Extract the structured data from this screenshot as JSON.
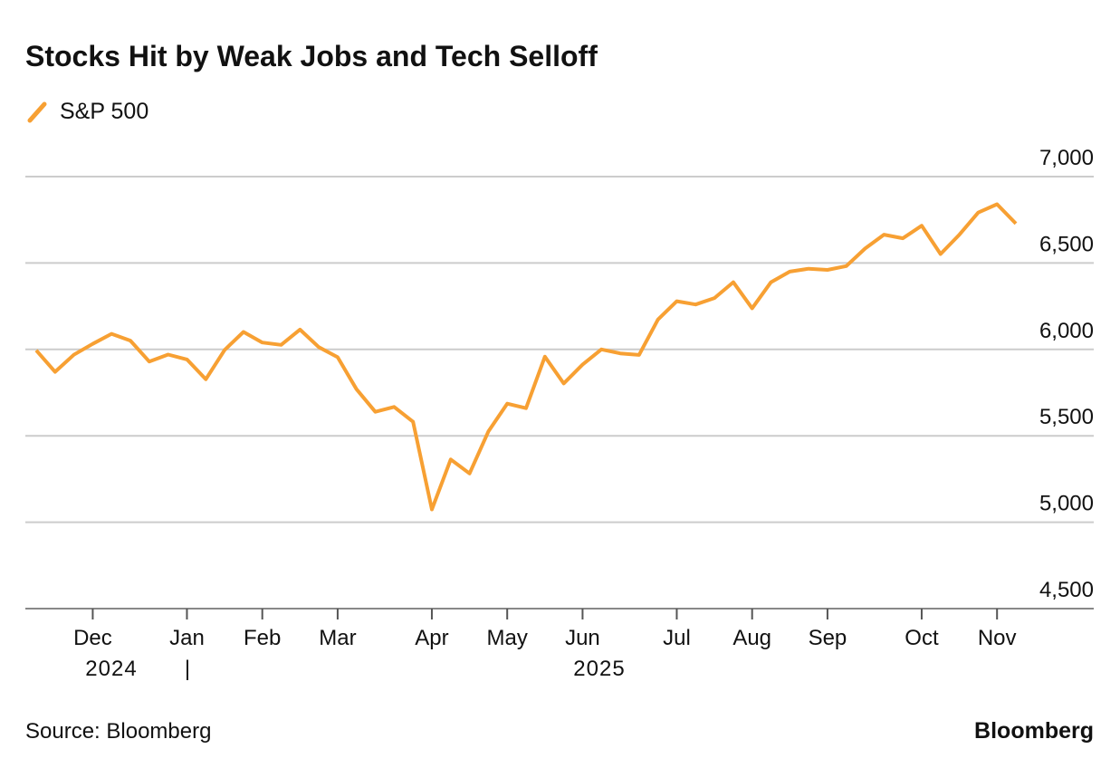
{
  "chart_data": {
    "type": "line",
    "title": "Stocks Hit by Weak Jobs and Tech Selloff",
    "categories": [
      null,
      null,
      null,
      "Dec",
      null,
      null,
      null,
      null,
      "Jan",
      null,
      null,
      null,
      "Feb",
      null,
      null,
      null,
      "Mar",
      null,
      null,
      null,
      null,
      "Apr",
      null,
      null,
      null,
      "May",
      null,
      null,
      null,
      "Jun",
      null,
      null,
      null,
      null,
      "Jul",
      null,
      null,
      null,
      "Aug",
      null,
      null,
      null,
      "Sep",
      null,
      null,
      null,
      null,
      "Oct",
      null,
      null,
      null,
      "Nov",
      null
    ],
    "year_labels": [
      "2024",
      "2025"
    ],
    "series": [
      {
        "name": "S&P 500",
        "color": "#f7a033",
        "values": [
          5995,
          5870,
          5969,
          6032,
          6090,
          6051,
          5930,
          5970,
          5942,
          5827,
          5997,
          6101,
          6040,
          6026,
          6115,
          6013,
          5955,
          5770,
          5639,
          5667,
          5581,
          5074,
          5363,
          5282,
          5525,
          5686,
          5660,
          5958,
          5803,
          5912,
          6000,
          5977,
          5968,
          6173,
          6279,
          6260,
          6297,
          6389,
          6238,
          6389,
          6450,
          6467,
          6460,
          6482,
          6584,
          6664,
          6643,
          6716,
          6552,
          6664,
          6792,
          6840,
          6728
        ]
      }
    ],
    "ylim": [
      4500,
      7000
    ],
    "yticks": [
      {
        "value": 4500,
        "label": "4,500"
      },
      {
        "value": 5000,
        "label": "5,000"
      },
      {
        "value": 5500,
        "label": "5,500"
      },
      {
        "value": 6000,
        "label": "6,000"
      },
      {
        "value": 6500,
        "label": "6,500"
      },
      {
        "value": 7000,
        "label": "7,000"
      }
    ],
    "grid": true,
    "source": "Source: Bloomberg",
    "brand": "Bloomberg"
  }
}
